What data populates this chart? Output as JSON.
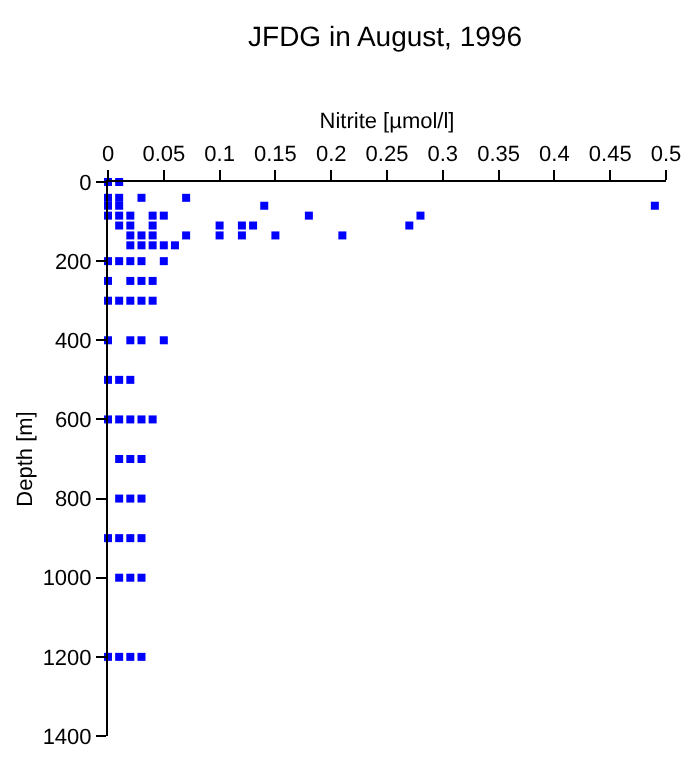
{
  "chart_data": {
    "type": "scatter",
    "title": "JFDG in August, 1996",
    "xlabel": "Nitrite [µmol/l]",
    "ylabel": "Depth [m]",
    "xlim": [
      0,
      0.5
    ],
    "xticks": [
      0,
      0.05,
      0.1,
      0.15,
      0.2,
      0.25,
      0.3,
      0.35,
      0.4,
      0.45,
      0.5
    ],
    "ylim": [
      1400,
      0
    ],
    "yticks": [
      0,
      200,
      400,
      600,
      800,
      1000,
      1200,
      1400
    ],
    "marker": "square",
    "series": [
      {
        "color": "#0000ff",
        "x": [
          0,
          0.01,
          0,
          0.01,
          0.03,
          0.07,
          0,
          0.01,
          0.14,
          0.49,
          0,
          0.01,
          0.02,
          0.04,
          0.05,
          0.18,
          0.28,
          0.01,
          0.02,
          0.04,
          0.1,
          0.12,
          0.13,
          0.27,
          0.02,
          0.03,
          0.04,
          0.07,
          0.1,
          0.12,
          0.15,
          0.21,
          0.02,
          0.03,
          0.04,
          0.05,
          0.06,
          0,
          0.01,
          0.02,
          0.03,
          0.05,
          0,
          0.02,
          0.03,
          0.04,
          0,
          0.01,
          0.02,
          0.03,
          0.04,
          0,
          0.02,
          0.03,
          0.05,
          0,
          0.01,
          0.02,
          0,
          0.01,
          0.02,
          0.03,
          0.04,
          0.01,
          0.02,
          0.03,
          0.01,
          0.02,
          0.03,
          0,
          0.01,
          0.02,
          0.03,
          0.01,
          0.02,
          0.03,
          0,
          0.01,
          0.02,
          0.03
        ],
        "values": [
          0,
          0,
          40,
          40,
          40,
          40,
          60,
          60,
          60,
          60,
          85,
          85,
          85,
          85,
          85,
          85,
          85,
          110,
          110,
          110,
          110,
          110,
          110,
          110,
          135,
          135,
          135,
          135,
          135,
          135,
          135,
          135,
          160,
          160,
          160,
          160,
          160,
          200,
          200,
          200,
          200,
          200,
          250,
          250,
          250,
          250,
          300,
          300,
          300,
          300,
          300,
          400,
          400,
          400,
          400,
          500,
          500,
          500,
          600,
          600,
          600,
          600,
          600,
          700,
          700,
          700,
          800,
          800,
          800,
          900,
          900,
          900,
          900,
          1000,
          1000,
          1000,
          1200,
          1200,
          1200,
          1200
        ]
      }
    ]
  }
}
